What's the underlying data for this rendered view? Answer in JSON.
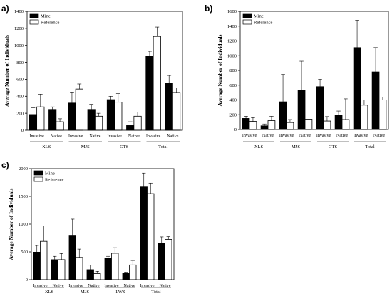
{
  "chart_data": [
    {
      "panel": "a)",
      "type": "bar",
      "ylabel": "Average Number of Individuals",
      "ylim": [
        0,
        1400
      ],
      "yticks": [
        0,
        200,
        400,
        600,
        800,
        1000,
        1200,
        1400
      ],
      "legend": {
        "position": "top-left",
        "entries": [
          "Mine",
          "Reference"
        ]
      },
      "groups": [
        "XLS",
        "MJS",
        "GTS",
        "Total"
      ],
      "categories": [
        "Invasive",
        "Native",
        "Invasive",
        "Native",
        "Invasive",
        "Native",
        "Invasive",
        "Native"
      ],
      "series": [
        {
          "name": "Mine",
          "color": "#000000",
          "values": [
            185,
            245,
            320,
            245,
            360,
            55,
            870,
            555
          ],
          "errors": [
            80,
            30,
            130,
            60,
            40,
            45,
            60,
            90
          ]
        },
        {
          "name": "Reference",
          "color": "#ffffff",
          "values": [
            275,
            100,
            485,
            165,
            330,
            165,
            1105,
            445
          ],
          "errors": [
            150,
            35,
            60,
            35,
            100,
            50,
            110,
            55
          ]
        }
      ]
    },
    {
      "panel": "b)",
      "type": "bar",
      "ylabel": "Average Number of Individuals",
      "ylim": [
        0,
        1600
      ],
      "yticks": [
        0,
        200,
        400,
        600,
        800,
        1000,
        1200,
        1400,
        1600
      ],
      "legend": {
        "position": "top-left",
        "entries": [
          "Mine",
          "Reference"
        ]
      },
      "groups": [
        "XLS",
        "MJS",
        "GTS",
        "Total"
      ],
      "categories": [
        "Invasive",
        "Native",
        "Invasive",
        "Native",
        "Invasive",
        "Native",
        "Invasive",
        "Native"
      ],
      "series": [
        {
          "name": "Mine",
          "color": "#000000",
          "values": [
            150,
            50,
            375,
            535,
            580,
            190,
            1110,
            780
          ],
          "errors": [
            30,
            25,
            370,
            390,
            100,
            60,
            370,
            330
          ]
        },
        {
          "name": "Reference",
          "color": "#ffffff",
          "values": [
            110,
            120,
            95,
            140,
            115,
            135,
            330,
            400
          ],
          "errors": [
            50,
            60,
            40,
            0,
            60,
            280,
            70,
            40
          ]
        }
      ]
    },
    {
      "panel": "c)",
      "type": "bar",
      "ylabel": "Average Number of Individuals",
      "ylim": [
        0,
        2000
      ],
      "yticks": [
        0,
        500,
        1000,
        1500,
        2000
      ],
      "legend": {
        "position": "top-left",
        "entries": [
          "Mine",
          "Reference"
        ]
      },
      "groups": [
        "XLS",
        "MJS",
        "LWS",
        "Total"
      ],
      "categories": [
        "Invasive",
        "Native",
        "Invasive",
        "Native",
        "Invasive",
        "Native",
        "Invasive",
        "Native"
      ],
      "series": [
        {
          "name": "Mine",
          "color": "#000000",
          "values": [
            495,
            360,
            800,
            180,
            380,
            115,
            1670,
            650
          ],
          "errors": [
            120,
            60,
            290,
            80,
            40,
            20,
            250,
            120
          ]
        },
        {
          "name": "Reference",
          "color": "#ffffff",
          "values": [
            690,
            360,
            400,
            110,
            475,
            265,
            1550,
            725
          ],
          "errors": [
            280,
            110,
            150,
            40,
            100,
            80,
            190,
            50
          ]
        }
      ]
    }
  ]
}
